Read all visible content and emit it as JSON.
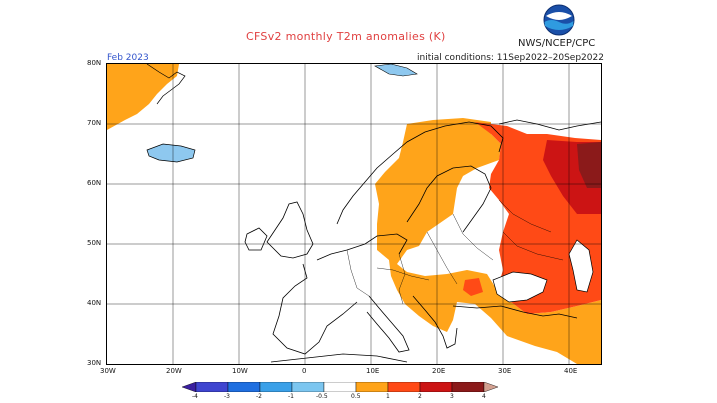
{
  "title": "CFSv2 monthly T2m anomalies (K)",
  "agency": "NWS/NCEP/CPC",
  "logo_text": "NOAA",
  "period": "Feb 2023",
  "initial_conditions": "initial conditions: 11Sep2022–20Sep2022",
  "map": {
    "lat_labels": [
      "80N",
      "70N",
      "60N",
      "50N",
      "40N",
      "30N"
    ],
    "lon_labels": [
      "30W",
      "20W",
      "10W",
      "0",
      "10E",
      "20E",
      "30E",
      "40E"
    ],
    "projection": "lat-lon",
    "extent": {
      "lon_min": -30,
      "lon_max": 47,
      "lat_min": 30,
      "lat_max": 80
    },
    "anomaly_pattern": "warm anomalies over eastern Europe and western Russia, strongest (2-3 K) over northwest Russia; 0.5-1 K over Scandinavia, Balkans and Greenland coast"
  },
  "colorbar": {
    "tick_labels": [
      "-4",
      "-3",
      "-2",
      "-1",
      "-0.5",
      "0.5",
      "1",
      "2",
      "3",
      "4"
    ],
    "colors": [
      "#3a1fa0",
      "#3f45d0",
      "#1f6fe0",
      "#3aa0e8",
      "#7cc6f0",
      "#ffffff",
      "#ffa41a",
      "#ff4a16",
      "#cc1414",
      "#8b1a1a",
      "#d2a090"
    ]
  },
  "colors": {
    "orange": "#ffa41a",
    "red_orange": "#ff4a16",
    "red": "#cc1414",
    "dark_red": "#8b1a1a",
    "light_blue": "#8ec8ef",
    "title_red": "#e04040"
  }
}
